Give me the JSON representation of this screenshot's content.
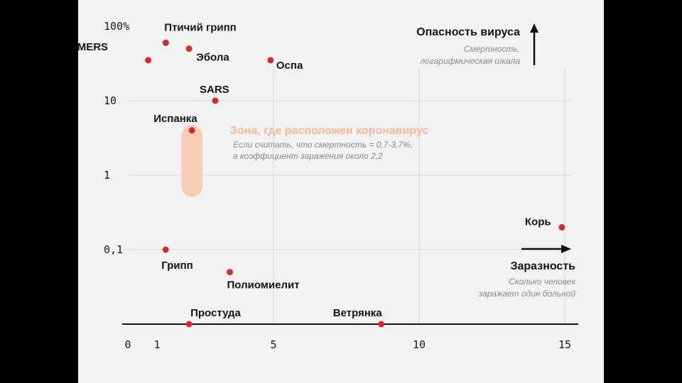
{
  "chart_data": {
    "type": "scatter",
    "y_scale": "log",
    "grid": true,
    "xlim": [
      0,
      15
    ],
    "ylim": [
      0.01,
      100
    ],
    "x_ticks": [
      "0",
      "1",
      "5",
      "10",
      "15"
    ],
    "y_ticks": [
      "100%",
      "10",
      "1",
      "0,1"
    ],
    "y_axis_title": "Опасность вируса",
    "y_axis_subtitle": [
      "Смертность,",
      "логарифмическая шкала"
    ],
    "x_axis_title": "Заразность",
    "x_axis_subtitle": [
      "Сколько человек",
      "заражает один больной"
    ],
    "points": [
      {
        "label": "Птичий грипп",
        "x": 1.3,
        "y": 60
      },
      {
        "label": "MERS",
        "x": 0.7,
        "y": 35
      },
      {
        "label": "Эбола",
        "x": 2.1,
        "y": 50
      },
      {
        "label": "Оспа",
        "x": 4.9,
        "y": 35
      },
      {
        "label": "SARS",
        "x": 3.0,
        "y": 10
      },
      {
        "label": "Испанка",
        "x": 2.2,
        "y": 4
      },
      {
        "label": "Грипп",
        "x": 1.3,
        "y": 0.1
      },
      {
        "label": "Полиомиелит",
        "x": 3.5,
        "y": 0.05
      },
      {
        "label": "Простуда",
        "x": 2.1,
        "y": 0.01
      },
      {
        "label": "Ветрянка",
        "x": 8.7,
        "y": 0.01
      },
      {
        "label": "Корь",
        "x": 14.9,
        "y": 0.2
      }
    ],
    "zone": {
      "title": "Зона, где расположен коронавирус",
      "note": [
        "Если считать, что смертность = 0,7-3,7%,",
        "а коэффициент заражения около 2,2"
      ],
      "x": 2.2,
      "y_range": [
        0.7,
        3.7
      ]
    },
    "colors": {
      "point": "#d42b2b",
      "grid": "#d8d8d8",
      "axis": "#111111",
      "zone": "#f7cdb5",
      "zone_title": "#f4b896"
    }
  }
}
